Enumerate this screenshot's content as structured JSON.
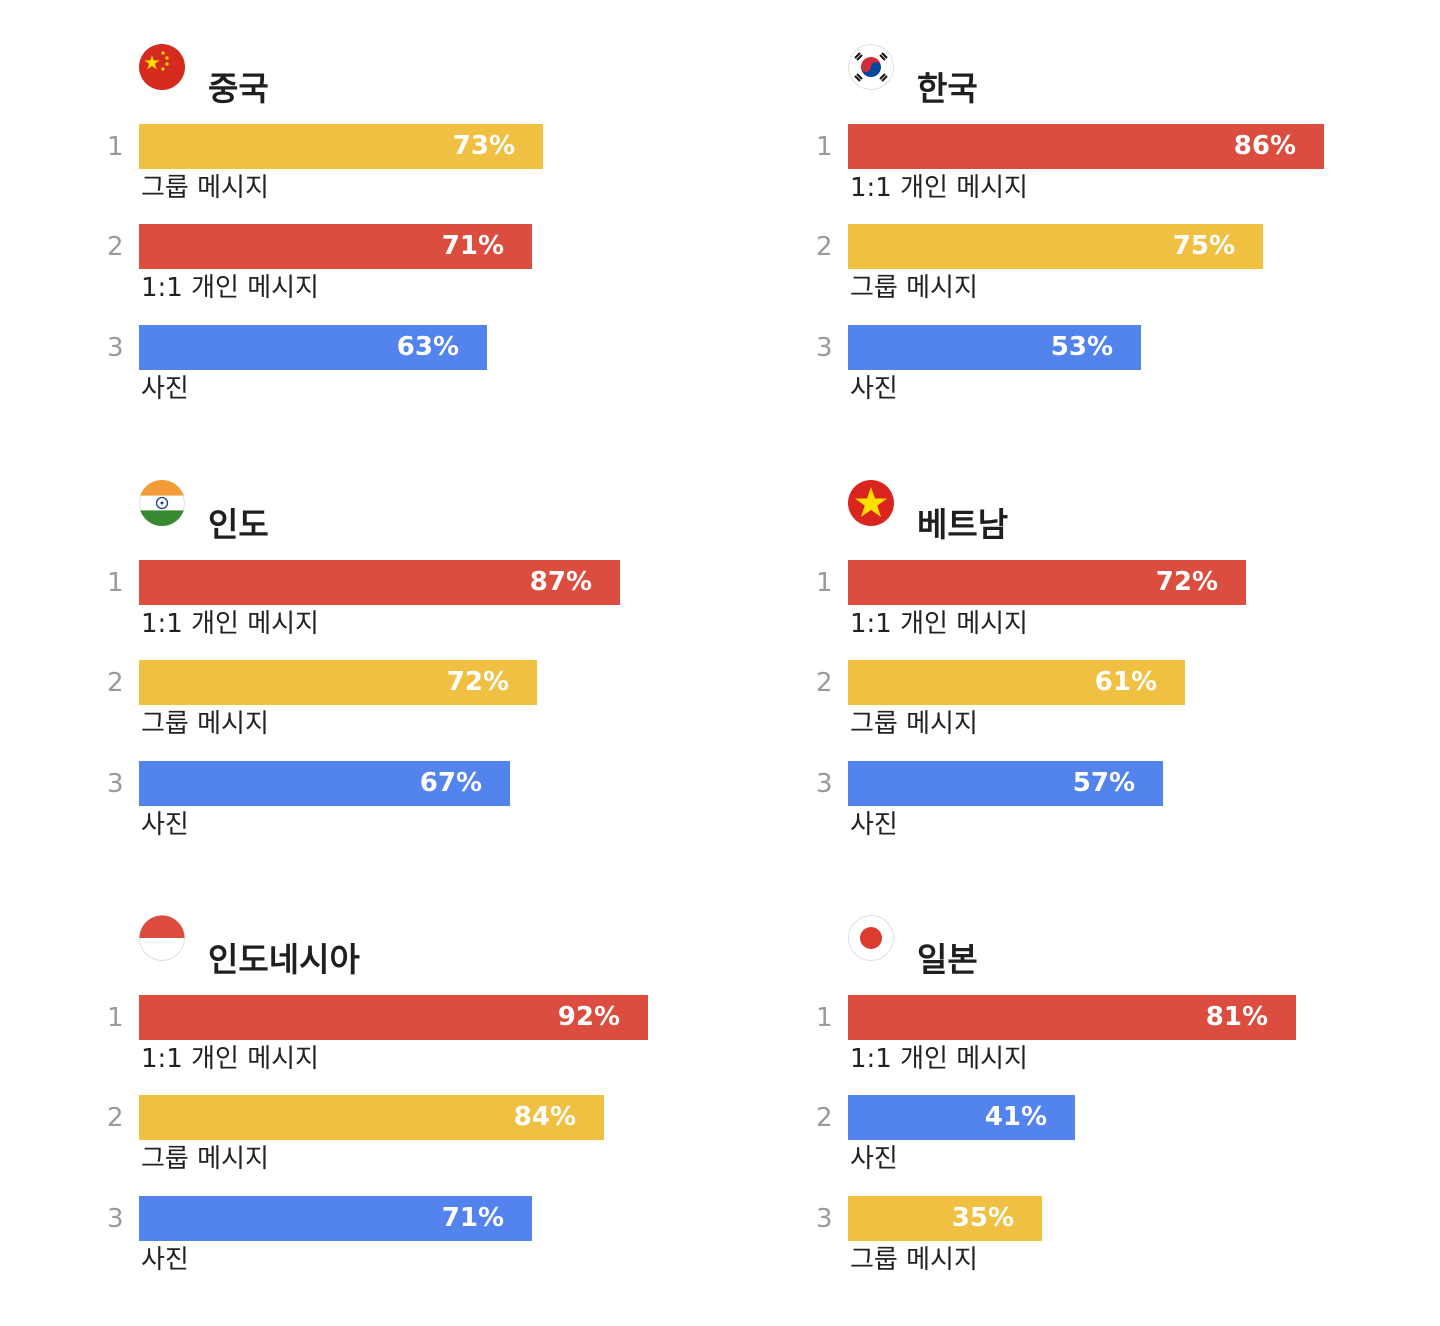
{
  "colors": {
    "1:1 개인 메시지": "#db4d3e",
    "그룹 메시지": "#f0c043",
    "사진": "#5383ec"
  },
  "chart_data": {
    "type": "bar",
    "x_max": 100,
    "unit": "%",
    "panels": [
      {
        "country": "중국",
        "flag": "china-flag-icon",
        "bars": [
          {
            "rank": "1",
            "label": "그룹 메시지",
            "value": 73
          },
          {
            "rank": "2",
            "label": "1:1 개인 메시지",
            "value": 71
          },
          {
            "rank": "3",
            "label": "사진",
            "value": 63
          }
        ]
      },
      {
        "country": "한국",
        "flag": "korea-flag-icon",
        "bars": [
          {
            "rank": "1",
            "label": "1:1 개인 메시지",
            "value": 86
          },
          {
            "rank": "2",
            "label": "그룹 메시지",
            "value": 75
          },
          {
            "rank": "3",
            "label": "사진",
            "value": 53
          }
        ]
      },
      {
        "country": "인도",
        "flag": "india-flag-icon",
        "bars": [
          {
            "rank": "1",
            "label": "1:1 개인 메시지",
            "value": 87
          },
          {
            "rank": "2",
            "label": "그룹 메시지",
            "value": 72
          },
          {
            "rank": "3",
            "label": "사진",
            "value": 67
          }
        ]
      },
      {
        "country": "베트남",
        "flag": "vietnam-flag-icon",
        "bars": [
          {
            "rank": "1",
            "label": "1:1 개인 메시지",
            "value": 72
          },
          {
            "rank": "2",
            "label": "그룹 메시지",
            "value": 61
          },
          {
            "rank": "3",
            "label": "사진",
            "value": 57
          }
        ]
      },
      {
        "country": "인도네시아",
        "flag": "indonesia-flag-icon",
        "bars": [
          {
            "rank": "1",
            "label": "1:1 개인 메시지",
            "value": 92
          },
          {
            "rank": "2",
            "label": "그룹 메시지",
            "value": 84
          },
          {
            "rank": "3",
            "label": "사진",
            "value": 71
          }
        ]
      },
      {
        "country": "일본",
        "flag": "japan-flag-icon",
        "bars": [
          {
            "rank": "1",
            "label": "1:1 개인 메시지",
            "value": 81
          },
          {
            "rank": "2",
            "label": "사진",
            "value": 41
          },
          {
            "rank": "3",
            "label": "그룹 메시지",
            "value": 35
          }
        ]
      }
    ]
  }
}
